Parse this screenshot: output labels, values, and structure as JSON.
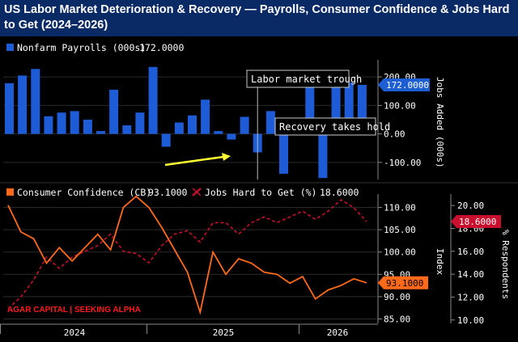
{
  "title": "US Labor Market Deterioration & Recovery — Payrolls, Consumer Confidence & Jobs Hard to Get (2024–2026)",
  "colors": {
    "title_bg": "#0a2a66",
    "payrolls": "#1e5bd6",
    "confidence": "#ff6a1a",
    "jobs_hard": "#c8102e",
    "annotation_arrow": "#ffff33",
    "watermark": "#ff1a1a",
    "gridline": "#2a2a2a"
  },
  "watermark": "AGAR CAPITAL | SEEKING ALPHA",
  "x_axis": {
    "tick_labels": [
      "2024",
      "2025",
      "2026"
    ]
  },
  "chart_data": [
    {
      "type": "bar",
      "legend": {
        "name": "Nonfarm Payrolls (000s)",
        "last_value": "172.0000",
        "placement": "top-left"
      },
      "ylabel": "Jobs Added (000s)",
      "ylim": [
        -160,
        260
      ],
      "yticks": [
        "200.00",
        "100.00",
        "0.00",
        "-100.00"
      ],
      "y_tick_values": [
        200,
        100,
        0,
        -100
      ],
      "last_value_badge": "172.0000",
      "values": [
        178,
        205,
        228,
        62,
        75,
        80,
        50,
        10,
        155,
        30,
        75,
        235,
        -45,
        40,
        65,
        120,
        10,
        -20,
        60,
        -65,
        80,
        -140,
        0,
        175,
        -155,
        180,
        180,
        172
      ],
      "annotations": [
        {
          "text": "Labor market trough",
          "at_index": 19
        },
        {
          "text": "Recovery takes hold",
          "at_index": 19
        }
      ]
    },
    {
      "type": "line",
      "legend_placement": "top-left",
      "series": [
        {
          "name": "Consumer Confidence (CB)",
          "last_value": "93.1000",
          "axis": "left",
          "values": [
            110.5,
            104.5,
            103.0,
            97.5,
            101.0,
            98.0,
            101.0,
            104.0,
            100.5,
            110.0,
            112.5,
            110.0,
            105.5,
            100.5,
            95.5,
            86.5,
            100.0,
            95.0,
            98.5,
            97.5,
            95.5,
            95.0,
            93.0,
            94.5,
            89.5,
            91.5,
            92.5,
            94.0,
            93.1
          ]
        },
        {
          "name": "Jobs Hard to Get (%)",
          "last_value": "18.6000",
          "axis": "right",
          "values": [
            11.0,
            12.0,
            13.5,
            15.5,
            14.5,
            15.5,
            16.0,
            16.5,
            17.5,
            16.0,
            15.8,
            15.0,
            16.5,
            17.5,
            17.8,
            16.8,
            18.5,
            18.5,
            17.5,
            18.5,
            19.0,
            18.5,
            19.0,
            19.5,
            18.8,
            19.5,
            20.5,
            19.8,
            18.6
          ]
        }
      ],
      "y_left": {
        "label": "Index",
        "ylim": [
          84,
          113
        ],
        "yticks": [
          "110.00",
          "105.00",
          "100.00",
          "95.00",
          "90.00",
          "85.00"
        ],
        "y_tick_values": [
          110,
          105,
          100,
          95,
          90,
          85
        ]
      },
      "y_right": {
        "label": "% Respondents",
        "ylim": [
          9.7,
          21.0
        ],
        "yticks": [
          "20.00",
          "18.00",
          "16.00",
          "14.00",
          "12.00",
          "10.00"
        ],
        "y_tick_values": [
          20,
          18,
          16,
          14,
          12,
          10
        ]
      }
    }
  ]
}
